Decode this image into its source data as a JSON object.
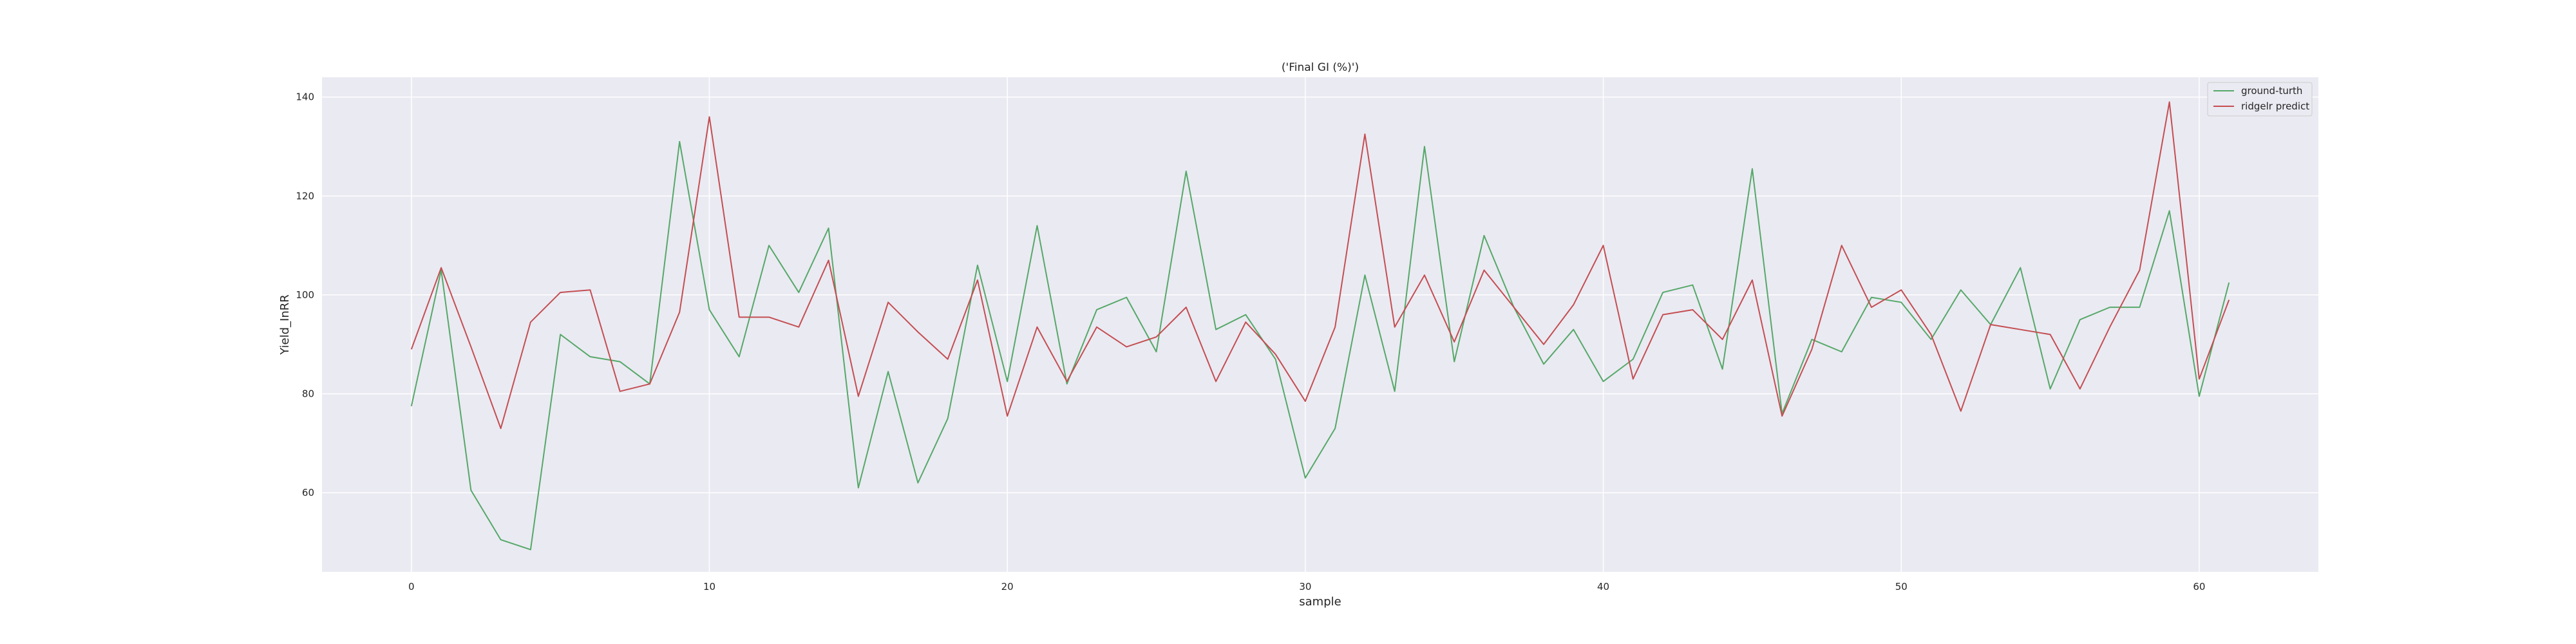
{
  "chart_data": {
    "type": "line",
    "title": "('Final GI (%)')",
    "xlabel": "sample",
    "ylabel": "Yield_InRR",
    "xlim": [
      -3,
      64
    ],
    "ylim": [
      44,
      144
    ],
    "x_ticks": [
      0,
      10,
      20,
      30,
      40,
      50,
      60
    ],
    "y_ticks": [
      60,
      80,
      100,
      120,
      140
    ],
    "grid": true,
    "legend_position": "top-right",
    "background": "#eaeaf2",
    "x": [
      0,
      1,
      2,
      3,
      4,
      5,
      6,
      7,
      8,
      9,
      10,
      11,
      12,
      13,
      14,
      15,
      16,
      17,
      18,
      19,
      20,
      21,
      22,
      23,
      24,
      25,
      26,
      27,
      28,
      29,
      30,
      31,
      32,
      33,
      34,
      35,
      36,
      37,
      38,
      39,
      40,
      41,
      42,
      43,
      44,
      45,
      46,
      47,
      48,
      49,
      50,
      51,
      52,
      53,
      54,
      55,
      56,
      57,
      58,
      59,
      60,
      61
    ],
    "series": [
      {
        "name": "ground-turth",
        "color": "#55a868",
        "values": [
          77.5,
          105,
          60.5,
          50.5,
          48.5,
          92,
          87.5,
          86.5,
          82,
          131,
          97,
          87.5,
          110,
          100.5,
          113.5,
          61,
          84.5,
          62,
          75,
          106,
          82.5,
          114,
          82,
          97,
          99.5,
          88.5,
          125,
          93,
          96,
          87,
          63,
          73,
          104,
          80.5,
          130,
          86.5,
          112,
          97.5,
          86,
          93,
          82.5,
          87,
          100.5,
          102,
          85,
          125.5,
          76,
          91,
          88.5,
          99.5,
          98.5,
          91,
          101,
          94,
          105.5,
          81,
          95,
          97.5,
          97.5,
          117,
          79.5,
          102.5
        ]
      },
      {
        "name": "ridgelr predict",
        "color": "#c44e52",
        "values": [
          89,
          105.5,
          89.5,
          73,
          94.5,
          100.5,
          101,
          80.5,
          82,
          96.5,
          136,
          95.5,
          95.5,
          93.5,
          107,
          79.5,
          98.5,
          92.5,
          87,
          103,
          75.5,
          93.5,
          82.5,
          93.5,
          89.5,
          91.5,
          97.5,
          82.5,
          94.5,
          88,
          78.5,
          93.5,
          132.5,
          93.5,
          104,
          90.5,
          105,
          97.5,
          90,
          98,
          110,
          83,
          96,
          97,
          91,
          103,
          75.5,
          89,
          110,
          97.5,
          101,
          92,
          76.5,
          94,
          93,
          92,
          81,
          93.5,
          105,
          139,
          83,
          99
        ]
      }
    ]
  }
}
